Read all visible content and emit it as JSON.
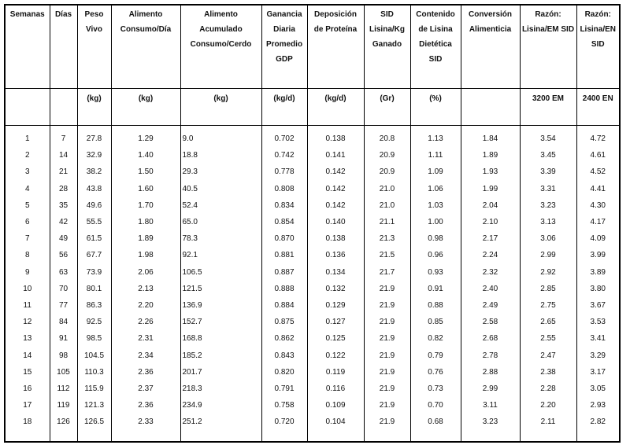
{
  "table": {
    "header": [
      "Semanas",
      "Días",
      "Peso Vivo",
      "Alimento Consumo/Día",
      "Alimento Acumulado Consumo/Cerdo",
      "Ganancia Diaria Promedio GDP",
      "Deposición de Proteína",
      "SID Lisina/Kg Ganado",
      "Contenido de Lisina Dietética SID",
      "Conversión Alimenticia",
      "Razón: Lisina/EM SID",
      "Razón: Lisina/EN SID"
    ],
    "units": [
      null,
      null,
      "(kg)",
      "(kg)",
      "(kg)",
      "(kg/d)",
      "(kg/d)",
      "(Gr)",
      "(%)",
      null,
      "3200 EM",
      "2400 EN"
    ],
    "rows": [
      [
        "1",
        "7",
        "27.8",
        "1.29",
        "9.0",
        "0.702",
        "0.138",
        "20.8",
        "1.13",
        "1.84",
        "3.54",
        "4.72"
      ],
      [
        "2",
        "14",
        "32.9",
        "1.40",
        "18.8",
        "0.742",
        "0.141",
        "20.9",
        "1.11",
        "1.89",
        "3.45",
        "4.61"
      ],
      [
        "3",
        "21",
        "38.2",
        "1.50",
        "29.3",
        "0.778",
        "0.142",
        "20.9",
        "1.09",
        "1.93",
        "3.39",
        "4.52"
      ],
      [
        "4",
        "28",
        "43.8",
        "1.60",
        "40.5",
        "0.808",
        "0.142",
        "21.0",
        "1.06",
        "1.99",
        "3.31",
        "4.41"
      ],
      [
        "5",
        "35",
        "49.6",
        "1.70",
        "52.4",
        "0.834",
        "0.142",
        "21.0",
        "1.03",
        "2.04",
        "3.23",
        "4.30"
      ],
      [
        "6",
        "42",
        "55.5",
        "1.80",
        "65.0",
        "0.854",
        "0.140",
        "21.1",
        "1.00",
        "2.10",
        "3.13",
        "4.17"
      ],
      [
        "7",
        "49",
        "61.5",
        "1.89",
        "78.3",
        "0.870",
        "0.138",
        "21.3",
        "0.98",
        "2.17",
        "3.06",
        "4.09"
      ],
      [
        "8",
        "56",
        "67.7",
        "1.98",
        "92.1",
        "0.881",
        "0.136",
        "21.5",
        "0.96",
        "2.24",
        "2.99",
        "3.99"
      ],
      [
        "9",
        "63",
        "73.9",
        "2.06",
        "106.5",
        "0.887",
        "0.134",
        "21.7",
        "0.93",
        "2.32",
        "2.92",
        "3.89"
      ],
      [
        "10",
        "70",
        "80.1",
        "2.13",
        "121.5",
        "0.888",
        "0.132",
        "21.9",
        "0.91",
        "2.40",
        "2.85",
        "3.80"
      ],
      [
        "11",
        "77",
        "86.3",
        "2.20",
        "136.9",
        "0.884",
        "0.129",
        "21.9",
        "0.88",
        "2.49",
        "2.75",
        "3.67"
      ],
      [
        "12",
        "84",
        "92.5",
        "2.26",
        "152.7",
        "0.875",
        "0.127",
        "21.9",
        "0.85",
        "2.58",
        "2.65",
        "3.53"
      ],
      [
        "13",
        "91",
        "98.5",
        "2.31",
        "168.8",
        "0.862",
        "0.125",
        "21.9",
        "0.82",
        "2.68",
        "2.55",
        "3.41"
      ],
      [
        "14",
        "98",
        "104.5",
        "2.34",
        "185.2",
        "0.843",
        "0.122",
        "21.9",
        "0.79",
        "2.78",
        "2.47",
        "3.29"
      ],
      [
        "15",
        "105",
        "110.3",
        "2.36",
        "201.7",
        "0.820",
        "0.119",
        "21.9",
        "0.76",
        "2.88",
        "2.38",
        "3.17"
      ],
      [
        "16",
        "112",
        "115.9",
        "2.37",
        "218.3",
        "0.791",
        "0.116",
        "21.9",
        "0.73",
        "2.99",
        "2.28",
        "3.05"
      ],
      [
        "17",
        "119",
        "121.3",
        "2.36",
        "234.9",
        "0.758",
        "0.109",
        "21.9",
        "0.70",
        "3.11",
        "2.20",
        "2.93"
      ],
      [
        "18",
        "126",
        "126.5",
        "2.33",
        "251.2",
        "0.720",
        "0.104",
        "21.9",
        "0.68",
        "3.23",
        "2.11",
        "2.82"
      ]
    ]
  }
}
